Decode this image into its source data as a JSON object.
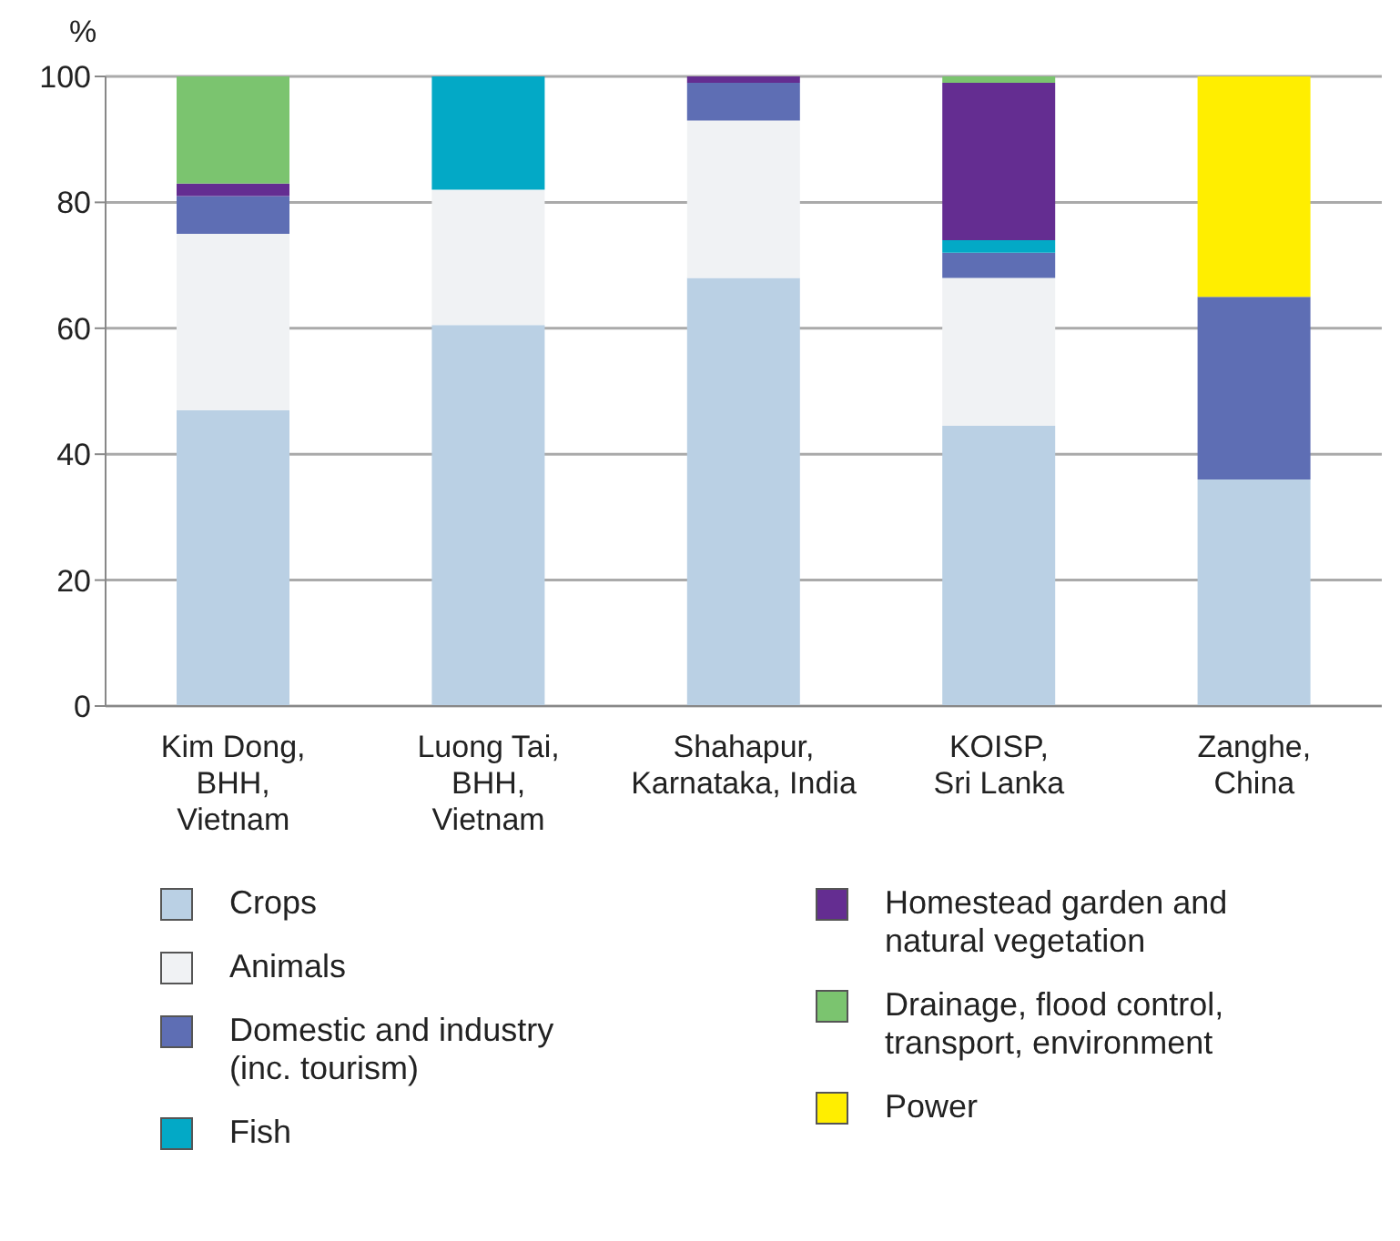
{
  "chart_data": {
    "type": "bar",
    "stacked": true,
    "ylabel": "%",
    "categories": [
      "Kim Dong,\nBHH,\nVietnam",
      "Luong Tai,\nBHH,\nVietnam",
      "Shahapur,\nKarnataka, India",
      "KOISP,\nSri Lanka",
      "Zanghe,\nChina"
    ],
    "series": [
      {
        "name": "Crops",
        "color": "#bad0e4",
        "values": [
          47,
          60.5,
          68,
          44.5,
          36
        ]
      },
      {
        "name": "Animals",
        "color": "#f0f2f4",
        "values": [
          28,
          21.5,
          25,
          23.5,
          0
        ]
      },
      {
        "name": "Domestic and industry (inc. tourism)",
        "color": "#5e6eb4",
        "values": [
          6,
          0,
          6,
          4,
          29
        ]
      },
      {
        "name": "Fish",
        "color": "#03a9c6",
        "values": [
          0,
          18,
          0,
          2,
          0
        ]
      },
      {
        "name": "Homestead garden and natural vegetation",
        "color": "#642d91",
        "values": [
          2,
          0,
          1,
          25,
          0
        ]
      },
      {
        "name": "Drainage, flood control, transport, environment",
        "color": "#7bc46f",
        "values": [
          17,
          0,
          0,
          1,
          0
        ]
      },
      {
        "name": "Power",
        "color": "#ffee00",
        "values": [
          0,
          0,
          0,
          0,
          35
        ]
      }
    ],
    "ylim": [
      0,
      100
    ],
    "yticks": [
      0,
      20,
      40,
      60,
      80,
      100
    ],
    "grid": "y",
    "legend": "bottom"
  }
}
